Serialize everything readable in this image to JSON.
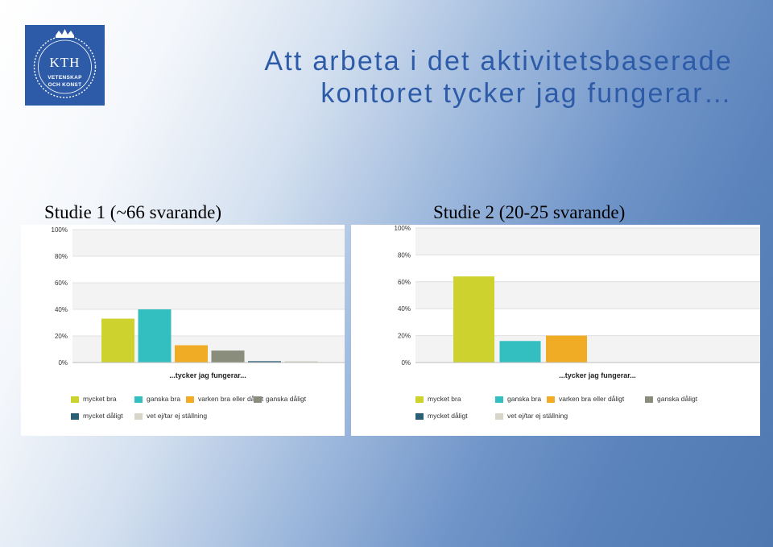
{
  "logo": {
    "text": "KTH",
    "line1": "VETENSKAP",
    "line2": "OCH KONST"
  },
  "title": {
    "line1": "Att arbeta i det aktivitetsbaserade",
    "line2": "kontoret tycker jag fungerar…"
  },
  "studies": [
    {
      "label": "Studie 1  (~66 svarande)"
    },
    {
      "label": "Studie 2  (20-25 svarande)"
    }
  ],
  "legend": [
    {
      "label": "mycket bra",
      "color": "#cdd22e"
    },
    {
      "label": "ganska bra",
      "color": "#33bfbf"
    },
    {
      "label": "varken bra eller dåligt",
      "color": "#f1ac25"
    },
    {
      "label": "ganska dåligt",
      "color": "#8a8c7c"
    },
    {
      "label": "mycket dåligt",
      "color": "#2a5f75"
    },
    {
      "label": "vet ej/tar ej ställning",
      "color": "#d8d6c9"
    }
  ],
  "chart_data": [
    {
      "type": "bar",
      "xlabel": "...tycker jag fungerar...",
      "ylim": [
        0,
        100
      ],
      "yticks": [
        "0%",
        "20%",
        "40%",
        "60%",
        "80%",
        "100%"
      ],
      "categories": [
        "mycket bra",
        "ganska bra",
        "varken bra eller dåligt",
        "ganska dåligt",
        "mycket dåligt",
        "vet ej/tar ej ställning"
      ],
      "values": [
        33,
        40,
        13,
        9,
        1,
        1
      ]
    },
    {
      "type": "bar",
      "xlabel": "...tycker jag fungerar...",
      "ylim": [
        0,
        100
      ],
      "yticks": [
        "0%",
        "20%",
        "40%",
        "60%",
        "80%",
        "100%"
      ],
      "categories": [
        "mycket bra",
        "ganska bra",
        "varken bra eller dåligt",
        "ganska dåligt",
        "mycket dåligt",
        "vet ej/tar ej ställning"
      ],
      "values": [
        64,
        16,
        20,
        0,
        0,
        0
      ]
    }
  ]
}
